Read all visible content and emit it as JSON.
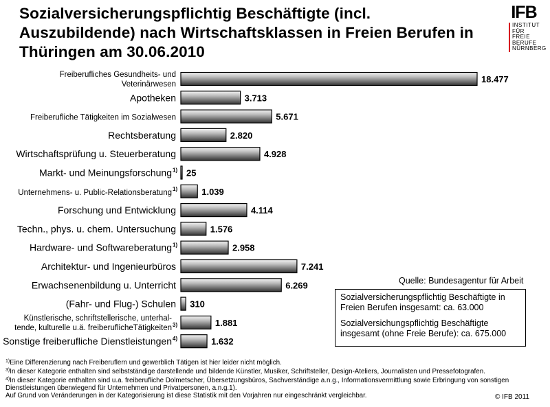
{
  "title": "Sozialversicherungspflichtig Beschäftigte (incl. Auszubildende) nach Wirtschaftsklassen in Freien Berufen in Thüringen am 30.06.2010",
  "logo": {
    "mark": "IFB",
    "lines": [
      "INSTITUT",
      "FÜR FREIE",
      "BERUFE",
      "NÜRNBERG"
    ]
  },
  "chart_data": {
    "type": "bar",
    "orientation": "horizontal",
    "grid": false,
    "categories": [
      "Freiberufliches Gesundheits- und Veterinärwesen",
      "Apotheken",
      "Freiberufliche Tätigkeiten im Sozialwesen",
      "Rechtsberatung",
      "Wirtschaftsprüfung u. Steuerberatung",
      "Markt- und Meinungsforschung",
      "Unternehmens- u. Public-Relationsberatung",
      "Forschung und Entwicklung",
      "Techn., phys. u. chem. Untersuchung",
      "Hardware- und Softwareberatung",
      "Architektur- und Ingenieurbüros",
      "Erwachsenenbildung u. Unterricht",
      "(Fahr- und Flug-) Schulen",
      "Künstlerische, schriftstellerische, unterhaltende, kulturelle u.ä. freiberuflicheTätigkeiten",
      "Sonstige freiberufliche Dienstleistungen"
    ],
    "footnote_markers": [
      "",
      "",
      "",
      "",
      "",
      "1)",
      "1)",
      "",
      "",
      "1)",
      "",
      "",
      "",
      "3)",
      "4)"
    ],
    "values": [
      18477,
      3713,
      5671,
      2820,
      4928,
      25,
      1039,
      4114,
      1576,
      2958,
      7241,
      6269,
      310,
      1881,
      1632
    ],
    "value_labels": [
      "18.477",
      "3.713",
      "5.671",
      "2.820",
      "4.928",
      "25",
      "1.039",
      "4.114",
      "1.576",
      "2.958",
      "7.241",
      "6.269",
      "310",
      "1.881",
      "1.632"
    ],
    "xlim": [
      0,
      18477
    ]
  },
  "source": "Quelle: Bundesagentur für Arbeit",
  "info_box": {
    "line1": "Sozialversicherungspflichtig Beschäftigte in Freien Berufen insgesamt: ca.  63.000",
    "line2": "Sozialversichungspflichtig Beschäftigte insgesamt (ohne Freie Berufe): ca. 675.000"
  },
  "footnotes": [
    {
      "marker": "1)",
      "text": "Eine Differenzierung nach Freiberuflern und gewerblich Tätigen ist hier leider nicht möglich."
    },
    {
      "marker": "3)",
      "text": "In dieser Kategorie enthalten sind selbstständige darstellende und bildende Künstler, Musiker, Schriftsteller, Design-Ateliers, Journalisten und Pressefotografen."
    },
    {
      "marker": "4)",
      "text": "In dieser Kategorie enthalten sind u.a. freiberufliche Dolmetscher, Übersetzungsbüros, Sachverständige a.n.g., Informationsvermittlung sowie Erbringung von sonstigen Dienstleistungen überwiegend für Unternehmen und Privatpersonen, a.n.g.1)."
    }
  ],
  "note": "Auf Grund von Veränderungen in der Kategorisierung ist diese Statistik mit den Vorjahren nur eingeschränkt vergleichbar.",
  "copyright": "© IFB 2011",
  "colors": {
    "bar": "#000000",
    "bar_fill_light": "#f2f2f2",
    "bar_fill_dark": "#3a3a3a",
    "logo_accent": "#d71920"
  }
}
